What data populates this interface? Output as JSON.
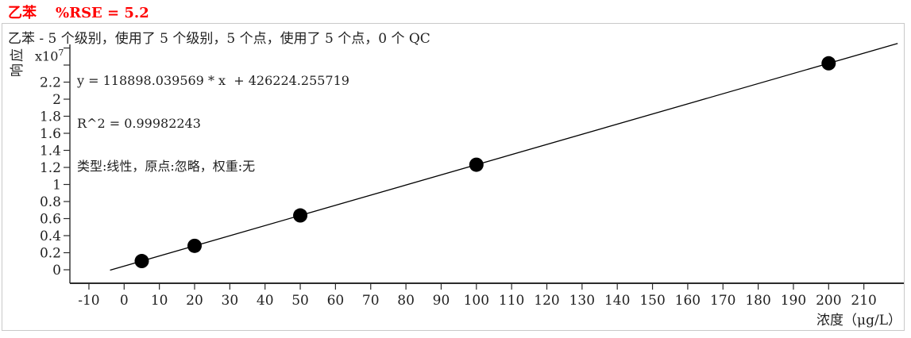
{
  "header": {
    "compound": "乙苯",
    "rse": "%RSE = 5.2",
    "title_color": "#ff0000"
  },
  "box": {
    "subtitle": "乙苯 - 5 个级别，使用了 5 个级别，5 个点，使用了 5 个点，0 个 QC"
  },
  "equation": {
    "line1": "y = 118898.039569 * x  + 426224.255719",
    "line2": "R^2 = 0.99982243",
    "line3": "类型:线性，原点:忽略，权重:无"
  },
  "colors": {
    "axis": "#2b2b2b",
    "text": "#1f1f1f",
    "marker": "#000000",
    "box_border": "#c9c9c9"
  },
  "chart_data": {
    "type": "scatter",
    "title": "",
    "xlabel": "浓度（μg/L）",
    "ylabel": "响应",
    "y_scale_label": {
      "base": "x10",
      "exp": "7"
    },
    "x": [
      5,
      20,
      50,
      100,
      200
    ],
    "y": [
      0.102,
      0.28,
      0.637,
      1.232,
      2.421
    ],
    "y_units_note": "values in multiples of 10^7",
    "fit": {
      "slope": 118898.039569,
      "intercept": 426224.255719,
      "r_squared": 0.99982243,
      "fit_type": "线性",
      "origin": "忽略",
      "weight": "无"
    },
    "x_ticks": [
      -10,
      0,
      10,
      20,
      30,
      40,
      50,
      60,
      70,
      80,
      90,
      100,
      110,
      120,
      130,
      140,
      150,
      160,
      170,
      180,
      190,
      200,
      210
    ],
    "y_ticks": [
      0,
      0.2,
      0.4,
      0.6,
      0.8,
      1,
      1.2,
      1.4,
      1.6,
      1.8,
      2,
      2.2
    ],
    "y_ticks_unlabeled": [
      2.4,
      2.6
    ],
    "xlim": [
      -15.4,
      221.3
    ],
    "ylim": [
      -0.16,
      2.64
    ],
    "line_x_range": [
      -4,
      219.6
    ],
    "grid": false,
    "legend": false,
    "marker": {
      "shape": "circle",
      "color": "#000000",
      "radius_px": 9
    }
  }
}
